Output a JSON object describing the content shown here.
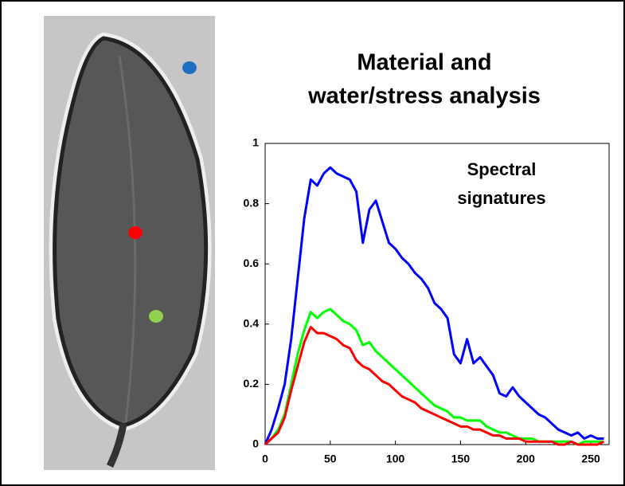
{
  "chart_data": {
    "type": "line",
    "title": [
      "Material and",
      "water/stress analysis"
    ],
    "annotation": [
      "Spectral",
      "signatures"
    ],
    "x": [
      0,
      5,
      10,
      15,
      20,
      25,
      30,
      35,
      40,
      45,
      50,
      55,
      60,
      65,
      70,
      75,
      80,
      85,
      90,
      95,
      100,
      105,
      110,
      115,
      120,
      125,
      130,
      135,
      140,
      145,
      150,
      155,
      160,
      165,
      170,
      175,
      180,
      185,
      190,
      195,
      200,
      205,
      210,
      215,
      220,
      225,
      230,
      235,
      240,
      245,
      250,
      255,
      260
    ],
    "series": [
      {
        "color": "#0000ff",
        "values": [
          0,
          0.05,
          0.12,
          0.2,
          0.35,
          0.55,
          0.75,
          0.88,
          0.86,
          0.9,
          0.92,
          0.9,
          0.89,
          0.88,
          0.84,
          0.67,
          0.78,
          0.81,
          0.74,
          0.67,
          0.65,
          0.62,
          0.6,
          0.57,
          0.55,
          0.52,
          0.47,
          0.45,
          0.42,
          0.3,
          0.27,
          0.35,
          0.27,
          0.29,
          0.26,
          0.23,
          0.17,
          0.16,
          0.19,
          0.16,
          0.14,
          0.12,
          0.1,
          0.09,
          0.07,
          0.05,
          0.04,
          0.03,
          0.04,
          0.02,
          0.03,
          0.02,
          0.02
        ]
      },
      {
        "color": "#00ff00",
        "values": [
          0,
          0.02,
          0.05,
          0.1,
          0.2,
          0.3,
          0.38,
          0.44,
          0.42,
          0.44,
          0.45,
          0.43,
          0.41,
          0.4,
          0.38,
          0.33,
          0.34,
          0.31,
          0.29,
          0.27,
          0.25,
          0.23,
          0.21,
          0.19,
          0.17,
          0.15,
          0.13,
          0.12,
          0.11,
          0.09,
          0.09,
          0.08,
          0.08,
          0.08,
          0.06,
          0.05,
          0.04,
          0.04,
          0.03,
          0.02,
          0.02,
          0.02,
          0.01,
          0.01,
          0.01,
          0.01,
          0.01,
          0.01,
          0,
          0.01,
          0.01,
          0.01,
          0.01
        ]
      },
      {
        "color": "#ff0000",
        "values": [
          0,
          0.02,
          0.04,
          0.09,
          0.18,
          0.26,
          0.34,
          0.39,
          0.37,
          0.37,
          0.36,
          0.35,
          0.33,
          0.32,
          0.28,
          0.26,
          0.25,
          0.23,
          0.21,
          0.2,
          0.18,
          0.16,
          0.15,
          0.14,
          0.12,
          0.11,
          0.1,
          0.09,
          0.08,
          0.07,
          0.06,
          0.06,
          0.05,
          0.05,
          0.04,
          0.03,
          0.03,
          0.02,
          0.02,
          0.02,
          0.01,
          0.01,
          0.01,
          0.01,
          0.01,
          0,
          0,
          0.01,
          0,
          0,
          0,
          0,
          0.01
        ]
      }
    ],
    "xlim": [
      0,
      264
    ],
    "xticks": [
      0,
      50,
      100,
      150,
      200,
      250
    ],
    "ylim": [
      0,
      1
    ],
    "yticks": [
      0,
      0.2,
      0.4,
      0.6,
      0.8,
      1
    ]
  }
}
